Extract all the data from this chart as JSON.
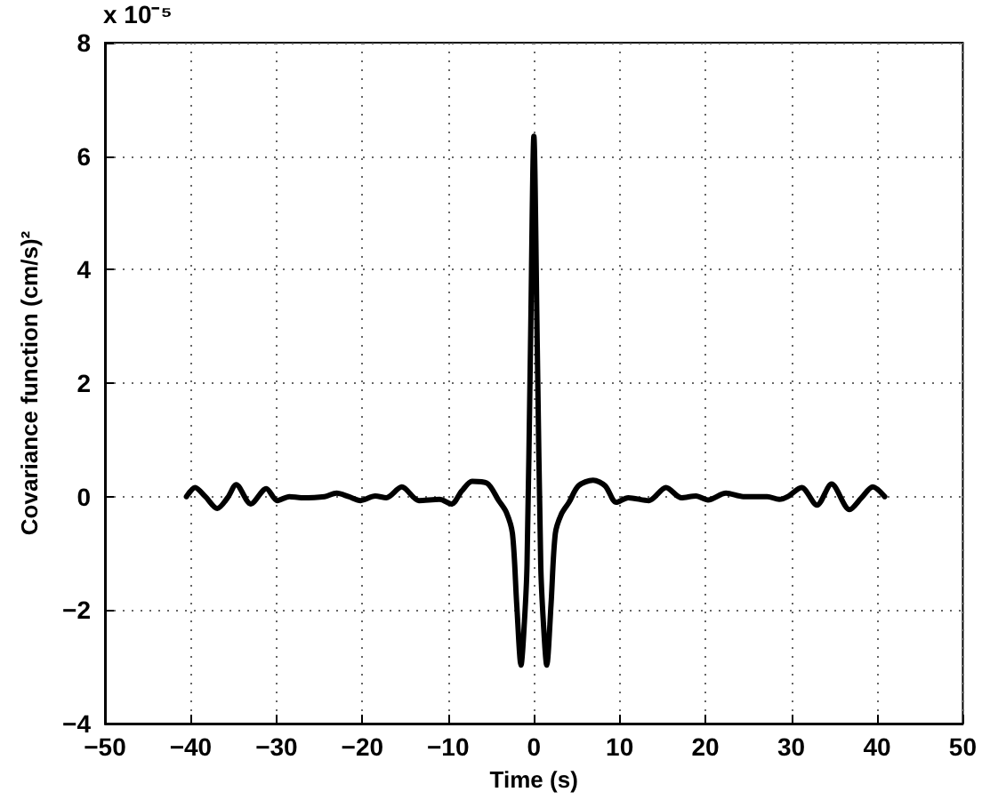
{
  "chart_data": {
    "type": "line",
    "xlabel": "Time (s)",
    "ylabel": "Covariance function (cm/s)²",
    "annotations": [
      "x 10⁻⁵"
    ],
    "x": [
      -40.5,
      -39.5,
      -38.3,
      -36.9,
      -35.7,
      -34.7,
      -33.0,
      -31.2,
      -29.9,
      -28.5,
      -27.1,
      -24.4,
      -23.0,
      -21.6,
      -20.2,
      -18.5,
      -17.2,
      -15.4,
      -13.4,
      -11.0,
      -9.6,
      -8.4,
      -7.2,
      -5.5,
      -4.1,
      -3.2,
      -2.5,
      -2.0,
      -1.5,
      -1.1,
      -0.8,
      -0.4,
      0.0,
      0.4,
      0.8,
      1.1,
      1.5,
      2.0,
      2.5,
      3.2,
      4.1,
      5.2,
      6.9,
      8.3,
      9.6,
      11.0,
      13.4,
      15.4,
      17.2,
      18.9,
      20.3,
      22.4,
      24.4,
      27.2,
      28.6,
      29.6,
      31.2,
      33.0,
      34.7,
      36.8,
      38.2,
      39.5,
      40.9
    ],
    "values": [
      0.0,
      0.16,
      0.0,
      -0.21,
      -0.02,
      0.21,
      -0.13,
      0.14,
      -0.07,
      0.0,
      -0.02,
      0.0,
      0.06,
      0.0,
      -0.07,
      0.01,
      -0.02,
      0.17,
      -0.07,
      -0.05,
      -0.13,
      0.1,
      0.27,
      0.24,
      -0.07,
      -0.28,
      -0.65,
      -1.9,
      -2.97,
      -2.2,
      -1.2,
      2.6,
      6.35,
      2.6,
      -1.2,
      -2.2,
      -2.97,
      -1.9,
      -0.65,
      -0.31,
      -0.1,
      0.19,
      0.29,
      0.19,
      -0.1,
      -0.02,
      -0.07,
      0.16,
      -0.02,
      0.01,
      -0.06,
      0.06,
      0.0,
      0.0,
      -0.05,
      0.0,
      0.16,
      -0.15,
      0.22,
      -0.23,
      -0.02,
      0.17,
      0.0
    ],
    "color": "#000000",
    "xlim": [
      -50,
      50
    ],
    "xticks": [
      -50,
      -40,
      -30,
      -20,
      -10,
      0,
      10,
      20,
      30,
      40,
      50
    ],
    "ylim": [
      -4,
      8
    ],
    "yticks": [
      -4,
      -2,
      0,
      2,
      4,
      6,
      8
    ],
    "grid": true,
    "marker": "none",
    "line_style": "solid"
  }
}
